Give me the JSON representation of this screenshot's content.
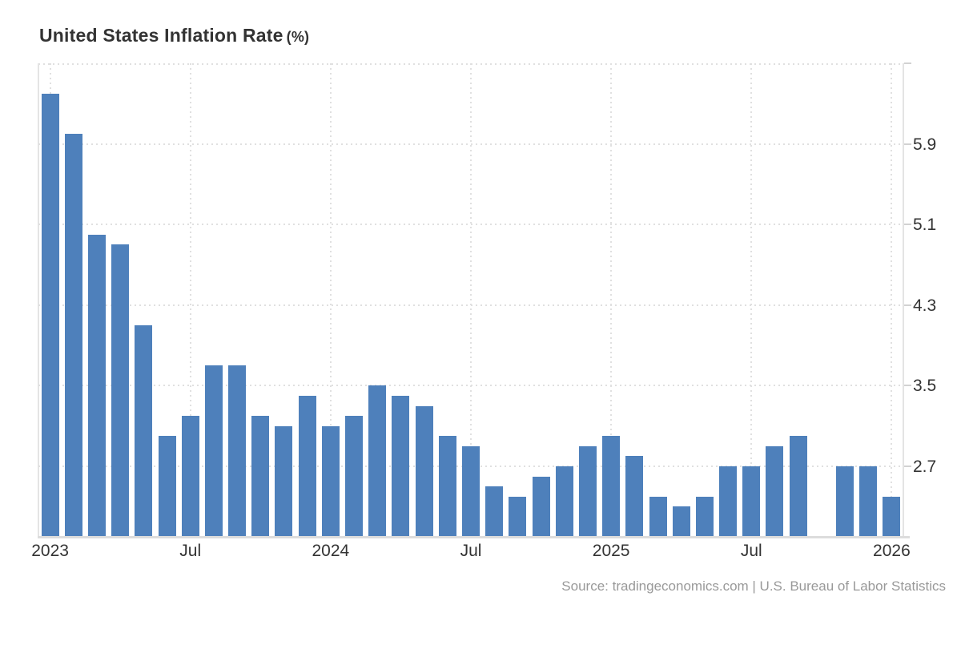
{
  "title": {
    "text": "United States Inflation Rate",
    "unit": "(%)"
  },
  "source": {
    "text": "Source: tradingeconomics.com | U.S. Bureau of Labor Statistics"
  },
  "colors": {
    "bar": "#4e80bb",
    "grid": "#e0e0e0",
    "axis_border": "#e4e4e4",
    "axis_line": "#dcdcdc",
    "tick": "#d2d2d2",
    "label": "#333333",
    "title": "#333333",
    "source_text": "#999999"
  },
  "chart_data": {
    "type": "bar",
    "title": "United States Inflation Rate (%)",
    "xlabel": "",
    "ylabel": "",
    "legend": "none",
    "grid": "dotted",
    "axis_side": "right",
    "ylim": [
      2.0,
      6.7
    ],
    "x": [
      "2023-01",
      "2023-02",
      "2023-03",
      "2023-04",
      "2023-05",
      "2023-06",
      "2023-07",
      "2023-08",
      "2023-09",
      "2023-10",
      "2023-11",
      "2023-12",
      "2024-01",
      "2024-02",
      "2024-03",
      "2024-04",
      "2024-05",
      "2024-06",
      "2024-07",
      "2024-08",
      "2024-09",
      "2024-10",
      "2024-11",
      "2024-12",
      "2025-01",
      "2025-02",
      "2025-03",
      "2025-04",
      "2025-05",
      "2025-06",
      "2025-07",
      "2025-08",
      "2025-09",
      "2025-10",
      "2025-11",
      "2025-12",
      "2026-01"
    ],
    "values": [
      6.4,
      6.0,
      5.0,
      4.9,
      4.1,
      3.0,
      3.2,
      3.7,
      3.7,
      3.2,
      3.1,
      3.4,
      3.1,
      3.2,
      3.5,
      3.4,
      3.3,
      3.0,
      2.9,
      2.5,
      2.4,
      2.6,
      2.7,
      2.9,
      3.0,
      2.8,
      2.4,
      2.3,
      2.4,
      2.7,
      2.7,
      2.9,
      3.0,
      null,
      2.7,
      2.7,
      2.4
    ],
    "missing_note": "2025-10 has no bar (gap in series)",
    "yticks": [
      {
        "value": 5.9,
        "label": "5.9"
      },
      {
        "value": 5.1,
        "label": "5.1"
      },
      {
        "value": 4.3,
        "label": "4.3"
      },
      {
        "value": 3.5,
        "label": "3.5"
      },
      {
        "value": 2.7,
        "label": "2.7"
      }
    ],
    "xticks": [
      {
        "slot": 0,
        "label": "2023"
      },
      {
        "slot": 6,
        "label": "Jul"
      },
      {
        "slot": 12,
        "label": "2024"
      },
      {
        "slot": 18,
        "label": "Jul"
      },
      {
        "slot": 24,
        "label": "2025"
      },
      {
        "slot": 30,
        "label": "Jul"
      },
      {
        "slot": 36,
        "label": "2026"
      }
    ]
  }
}
